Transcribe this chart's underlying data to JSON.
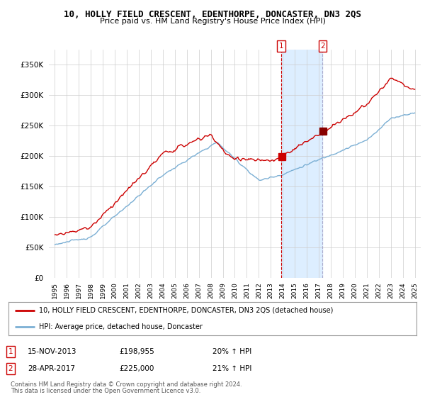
{
  "title": "10, HOLLY FIELD CRESCENT, EDENTHORPE, DONCASTER, DN3 2QS",
  "subtitle": "Price paid vs. HM Land Registry's House Price Index (HPI)",
  "legend_line1": "10, HOLLY FIELD CRESCENT, EDENTHORPE, DONCASTER, DN3 2QS (detached house)",
  "legend_line2": "HPI: Average price, detached house, Doncaster",
  "annotation1_date": "15-NOV-2013",
  "annotation1_price": "£198,955",
  "annotation1_hpi": "20% ↑ HPI",
  "annotation1_year": 2013.88,
  "annotation1_value": 198955,
  "annotation2_date": "28-APR-2017",
  "annotation2_price": "£225,000",
  "annotation2_hpi": "21% ↑ HPI",
  "annotation2_year": 2017.32,
  "annotation2_value": 225000,
  "footer1": "Contains HM Land Registry data © Crown copyright and database right 2024.",
  "footer2": "This data is licensed under the Open Government Licence v3.0.",
  "red_color": "#cc0000",
  "blue_color": "#7bafd4",
  "shade_color": "#ddeeff",
  "background_color": "#ffffff",
  "grid_color": "#cccccc",
  "ylim": [
    0,
    375000
  ],
  "yticks": [
    0,
    50000,
    100000,
    150000,
    200000,
    250000,
    300000,
    350000
  ],
  "xlim_start": 1994.5,
  "xlim_end": 2025.5
}
